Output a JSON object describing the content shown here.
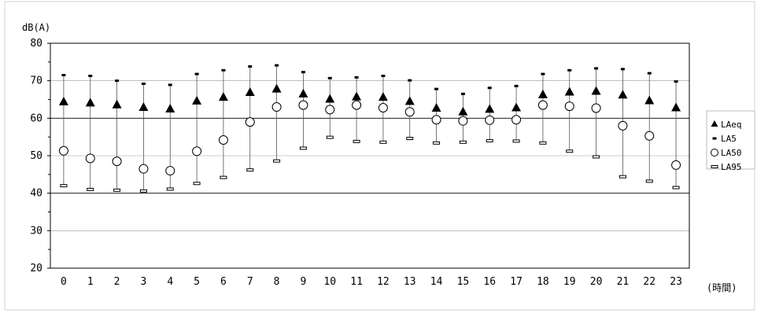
{
  "chart_data": {
    "type": "scatter",
    "ylabel": "dB(A)",
    "xlabel": "(時間)",
    "ylim": [
      20,
      80
    ],
    "yticks": [
      "20",
      "30",
      "40",
      "50",
      "60",
      "70",
      "80"
    ],
    "categories": [
      "0",
      "1",
      "2",
      "3",
      "4",
      "5",
      "6",
      "7",
      "8",
      "9",
      "10",
      "11",
      "12",
      "13",
      "14",
      "15",
      "16",
      "17",
      "18",
      "19",
      "20",
      "21",
      "22",
      "23"
    ],
    "grid": true,
    "legend_position": "right",
    "series": [
      {
        "name": "LAeq",
        "marker": "filled-triangle",
        "values": [
          64.5,
          64.2,
          63.7,
          63.0,
          62.6,
          64.7,
          65.7,
          67.0,
          67.9,
          66.6,
          65.2,
          65.8,
          65.7,
          64.6,
          62.8,
          61.8,
          62.5,
          62.9,
          66.4,
          67.1,
          67.3,
          66.3,
          64.8,
          62.9
        ]
      },
      {
        "name": "LA5",
        "marker": "dash",
        "values": [
          71.5,
          71.3,
          70.0,
          69.2,
          68.9,
          71.8,
          72.8,
          73.8,
          74.1,
          72.3,
          70.7,
          70.9,
          71.3,
          70.1,
          67.8,
          66.5,
          68.1,
          68.6,
          71.8,
          72.8,
          73.3,
          73.1,
          72.0,
          69.8
        ]
      },
      {
        "name": "LA50",
        "marker": "open-circle",
        "values": [
          51.3,
          49.3,
          48.5,
          46.5,
          46.0,
          51.2,
          54.2,
          59.0,
          63.0,
          63.5,
          62.3,
          63.5,
          62.8,
          61.7,
          59.6,
          59.3,
          59.5,
          59.6,
          63.5,
          63.2,
          62.7,
          58.0,
          55.3,
          47.5
        ]
      },
      {
        "name": "LA95",
        "marker": "open-bar",
        "values": [
          42.0,
          41.0,
          40.8,
          40.6,
          41.1,
          42.6,
          44.2,
          46.2,
          48.6,
          52.0,
          54.9,
          53.8,
          53.6,
          54.6,
          53.4,
          53.6,
          54.0,
          53.9,
          53.4,
          51.2,
          49.7,
          44.4,
          43.2,
          41.5
        ]
      }
    ]
  }
}
